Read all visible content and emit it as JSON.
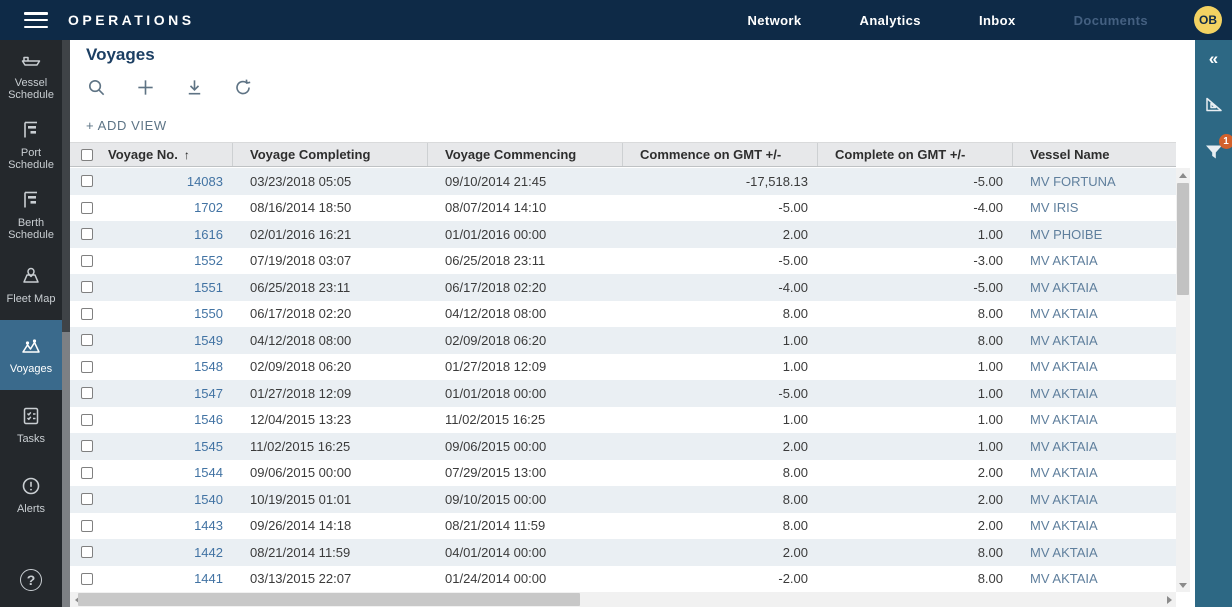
{
  "app": {
    "brand": "OPERATIONS"
  },
  "navbar": {
    "links": [
      {
        "label": "Network",
        "muted": false
      },
      {
        "label": "Analytics",
        "muted": false
      },
      {
        "label": "Inbox",
        "muted": false
      },
      {
        "label": "Documents",
        "muted": true
      }
    ],
    "avatar_initials": "OB"
  },
  "sidebar": {
    "items": [
      {
        "label": "Vessel Schedule",
        "icon": "vessel-schedule-icon",
        "selected": false
      },
      {
        "label": "Port Schedule",
        "icon": "port-schedule-icon",
        "selected": false
      },
      {
        "label": "Berth Schedule",
        "icon": "berth-schedule-icon",
        "selected": false
      },
      {
        "label": "Fleet Map",
        "icon": "fleet-map-icon",
        "selected": false
      },
      {
        "label": "Voyages",
        "icon": "voyages-icon",
        "selected": true
      },
      {
        "label": "Tasks",
        "icon": "tasks-icon",
        "selected": false
      },
      {
        "label": "Alerts",
        "icon": "alerts-icon",
        "selected": false
      }
    ],
    "help_label": "?"
  },
  "page": {
    "title": "Voyages",
    "add_view_label": "+ ADD VIEW",
    "toolbar": [
      {
        "name": "search"
      },
      {
        "name": "add"
      },
      {
        "name": "download"
      },
      {
        "name": "reset"
      }
    ]
  },
  "right_panel": {
    "collapse_glyph": "«",
    "filter_badge": "1"
  },
  "table": {
    "sort_glyph": "↑",
    "columns": [
      {
        "label": "Voyage No.",
        "key": "voyage_no",
        "align": "right",
        "sorted": true,
        "style": "voyage-link"
      },
      {
        "label": "Voyage Completing",
        "key": "completing",
        "align": "left",
        "sorted": false,
        "style": ""
      },
      {
        "label": "Voyage Commencing",
        "key": "commencing",
        "align": "left",
        "sorted": false,
        "style": ""
      },
      {
        "label": "Commence on GMT +/-",
        "key": "commence_gmt",
        "align": "right",
        "sorted": false,
        "style": ""
      },
      {
        "label": "Complete on GMT +/-",
        "key": "complete_gmt",
        "align": "right",
        "sorted": false,
        "style": ""
      },
      {
        "label": "Vessel Name",
        "key": "vessel",
        "align": "left",
        "sorted": false,
        "style": "vessel-link"
      }
    ],
    "rows": [
      {
        "voyage_no": "14083",
        "completing": "03/23/2018 05:05",
        "commencing": "09/10/2014 21:45",
        "commence_gmt": "-17,518.13",
        "complete_gmt": "-5.00",
        "vessel": "MV FORTUNA"
      },
      {
        "voyage_no": "1702",
        "completing": "08/16/2014 18:50",
        "commencing": "08/07/2014 14:10",
        "commence_gmt": "-5.00",
        "complete_gmt": "-4.00",
        "vessel": "MV IRIS"
      },
      {
        "voyage_no": "1616",
        "completing": "02/01/2016 16:21",
        "commencing": "01/01/2016 00:00",
        "commence_gmt": "2.00",
        "complete_gmt": "1.00",
        "vessel": "MV PHOIBE"
      },
      {
        "voyage_no": "1552",
        "completing": "07/19/2018 03:07",
        "commencing": "06/25/2018 23:11",
        "commence_gmt": "-5.00",
        "complete_gmt": "-3.00",
        "vessel": "MV AKTAIA"
      },
      {
        "voyage_no": "1551",
        "completing": "06/25/2018 23:11",
        "commencing": "06/17/2018 02:20",
        "commence_gmt": "-4.00",
        "complete_gmt": "-5.00",
        "vessel": "MV AKTAIA"
      },
      {
        "voyage_no": "1550",
        "completing": "06/17/2018 02:20",
        "commencing": "04/12/2018 08:00",
        "commence_gmt": "8.00",
        "complete_gmt": "8.00",
        "vessel": "MV AKTAIA"
      },
      {
        "voyage_no": "1549",
        "completing": "04/12/2018 08:00",
        "commencing": "02/09/2018 06:20",
        "commence_gmt": "1.00",
        "complete_gmt": "8.00",
        "vessel": "MV AKTAIA"
      },
      {
        "voyage_no": "1548",
        "completing": "02/09/2018 06:20",
        "commencing": "01/27/2018 12:09",
        "commence_gmt": "1.00",
        "complete_gmt": "1.00",
        "vessel": "MV AKTAIA"
      },
      {
        "voyage_no": "1547",
        "completing": "01/27/2018 12:09",
        "commencing": "01/01/2018 00:00",
        "commence_gmt": "-5.00",
        "complete_gmt": "1.00",
        "vessel": "MV AKTAIA"
      },
      {
        "voyage_no": "1546",
        "completing": "12/04/2015 13:23",
        "commencing": "11/02/2015 16:25",
        "commence_gmt": "1.00",
        "complete_gmt": "1.00",
        "vessel": "MV AKTAIA"
      },
      {
        "voyage_no": "1545",
        "completing": "11/02/2015 16:25",
        "commencing": "09/06/2015 00:00",
        "commence_gmt": "2.00",
        "complete_gmt": "1.00",
        "vessel": "MV AKTAIA"
      },
      {
        "voyage_no": "1544",
        "completing": "09/06/2015 00:00",
        "commencing": "07/29/2015 13:00",
        "commence_gmt": "8.00",
        "complete_gmt": "2.00",
        "vessel": "MV AKTAIA"
      },
      {
        "voyage_no": "1540",
        "completing": "10/19/2015 01:01",
        "commencing": "09/10/2015 00:00",
        "commence_gmt": "8.00",
        "complete_gmt": "2.00",
        "vessel": "MV AKTAIA"
      },
      {
        "voyage_no": "1443",
        "completing": "09/26/2014 14:18",
        "commencing": "08/21/2014 11:59",
        "commence_gmt": "8.00",
        "complete_gmt": "2.00",
        "vessel": "MV AKTAIA"
      },
      {
        "voyage_no": "1442",
        "completing": "08/21/2014 11:59",
        "commencing": "04/01/2014 00:00",
        "commence_gmt": "2.00",
        "complete_gmt": "8.00",
        "vessel": "MV AKTAIA"
      },
      {
        "voyage_no": "1441",
        "completing": "03/13/2015 22:07",
        "commencing": "01/24/2014 00:00",
        "commence_gmt": "-2.00",
        "complete_gmt": "8.00",
        "vessel": "MV AKTAIA"
      }
    ]
  },
  "colors": {
    "navbar": "#0e2a47",
    "sidebar": "#24282c",
    "selected_item": "#3a6a8c",
    "right_panel": "#2d6884",
    "badge": "#d2612c",
    "link": "#4273a3",
    "vessel_link": "#5f7f9d",
    "row_stripe": "#eaeff3",
    "header_bg": "#e7e8ea",
    "avatar_bg": "#f2d262"
  }
}
